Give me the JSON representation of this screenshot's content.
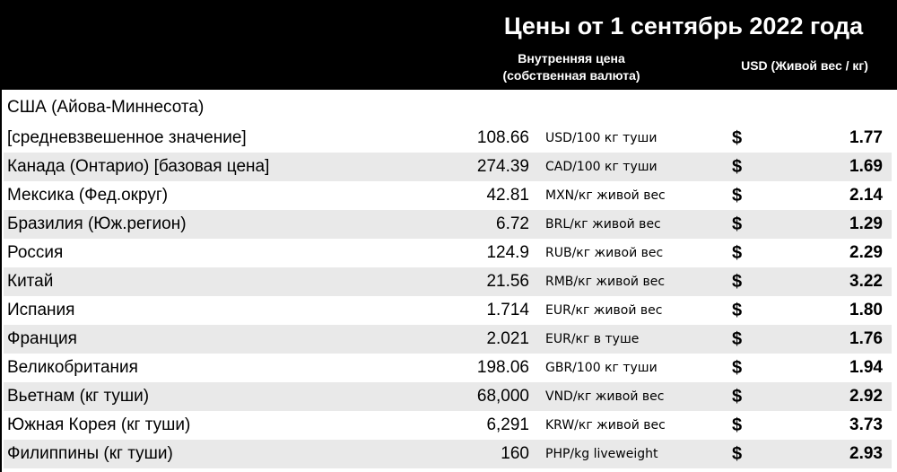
{
  "header": {
    "title": "Цены от 1 сентябрь 2022 года",
    "local_price_line1": "Внутренняя цена",
    "local_price_line2": "(собственная валюта)",
    "usd_label": "USD (Живой вес / кг)"
  },
  "currency_symbol": "$",
  "prices": {
    "note_row": {
      "country": "США (Айова-Миннесота)"
    },
    "rows": [
      {
        "country": "[средневзвешенное значение]",
        "value": "108.66",
        "unit": "USD/100 кг туши",
        "usd": "1.77"
      },
      {
        "country": "Канада (Онтарио) [базовая цена]",
        "value": "274.39",
        "unit": "CAD/100 кг туши",
        "usd": "1.69"
      },
      {
        "country": "Мексика (Фед.округ)",
        "value": "42.81",
        "unit": "MXN/кг живой вес",
        "usd": "2.14"
      },
      {
        "country": "Бразилия (Юж.регион)",
        "value": "6.72",
        "unit": "BRL/кг живой вес",
        "usd": "1.29"
      },
      {
        "country": "Россия",
        "value": "124.9",
        "unit": "RUB/кг живой вес",
        "usd": "2.29"
      },
      {
        "country": "Китай",
        "value": "21.56",
        "unit": "RMB/кг живой вес",
        "usd": "3.22"
      },
      {
        "country": "Испания",
        "value": "1.714",
        "unit": "EUR/кг живой вес",
        "usd": "1.80"
      },
      {
        "country": "Франция",
        "value": "2.021",
        "unit": "EUR/кг в туше",
        "usd": "1.76"
      },
      {
        "country": "Великобритания",
        "value": "198.06",
        "unit": "GBR/100 кг туши",
        "usd": "1.94"
      },
      {
        "country": "Вьетнам (кг туши)",
        "value": "68,000",
        "unit": "VND/кг живой вес",
        "usd": "2.92"
      },
      {
        "country": "Южная Корея (кг туши)",
        "value": "6,291",
        "unit": "KRW/кг живой вес",
        "usd": "3.73"
      },
      {
        "country": "Филиппины (кг туши)",
        "value": "160",
        "unit": "PHP/kg liveweight",
        "usd": "2.93"
      }
    ]
  }
}
